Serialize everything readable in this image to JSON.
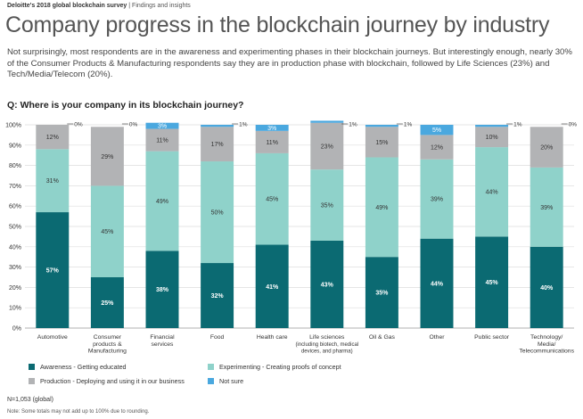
{
  "header": {
    "report": "Deloitte's 2018 global blockchain survey",
    "separator": " | ",
    "section": "Findings and insights"
  },
  "title": "Company progress in the blockchain journey by industry",
  "intro": "Not surprisingly, most respondents are in the awareness and experimenting phases in their blockchain journeys. But interestingly enough, nearly 30% of the Consumer Products & Manufacturing respondents say they are in production phase with blockchain, followed by Life Sciences (23%) and Tech/Media/Telecom (20%).",
  "question": "Q: Where is your company in its blockchain journey?",
  "legend": [
    {
      "label": "Awareness - Getting educated",
      "color": "#0b6a72"
    },
    {
      "label": "Experimenting - Creating proofs of concept",
      "color": "#8fd2ca"
    },
    {
      "label": "Production - Deploying and using it in our business",
      "color": "#b2b3b5"
    },
    {
      "label": "Not sure",
      "color": "#4aa8df"
    }
  ],
  "sample_note": "N=1,053 (global)",
  "footnote": "Note: Some totals may not add up to 100% due to rounding.",
  "chart_data": {
    "type": "bar",
    "stacked": true,
    "ylim": [
      0,
      100
    ],
    "yticks": [
      "0%",
      "10%",
      "20%",
      "30%",
      "40%",
      "50%",
      "60%",
      "70%",
      "80%",
      "90%",
      "100%"
    ],
    "grid": true,
    "legend_position": "bottom",
    "categories": [
      [
        "Automotive"
      ],
      [
        "Consumer",
        "products &",
        "Manufacturing"
      ],
      [
        "Financial",
        "services"
      ],
      [
        "Food"
      ],
      [
        "Health care"
      ],
      [
        "Life sciences",
        "(including biotech, medical",
        "devices, and pharma)"
      ],
      [
        "Oil & Gas"
      ],
      [
        "Other"
      ],
      [
        "Public sector"
      ],
      [
        "Technology/",
        "Media/",
        "Telecommunications"
      ]
    ],
    "series": [
      {
        "name": "Awareness - Getting educated",
        "color": "#0b6a72",
        "values": [
          57,
          25,
          38,
          32,
          41,
          43,
          35,
          44,
          45,
          40
        ]
      },
      {
        "name": "Experimenting - Creating proofs of concept",
        "color": "#8fd2ca",
        "values": [
          31,
          45,
          49,
          50,
          45,
          35,
          49,
          39,
          44,
          39
        ]
      },
      {
        "name": "Production - Deploying and using it in our business",
        "color": "#b2b3b5",
        "values": [
          12,
          29,
          11,
          17,
          11,
          23,
          15,
          12,
          10,
          20
        ]
      },
      {
        "name": "Not sure",
        "color": "#4aa8df",
        "values": [
          0,
          0,
          3,
          1,
          3,
          1,
          1,
          5,
          1,
          0
        ]
      }
    ],
    "top_labels": [
      "0%",
      "0%",
      "",
      "1%",
      "",
      "1%",
      "1%",
      "",
      "1%",
      "0%"
    ]
  }
}
